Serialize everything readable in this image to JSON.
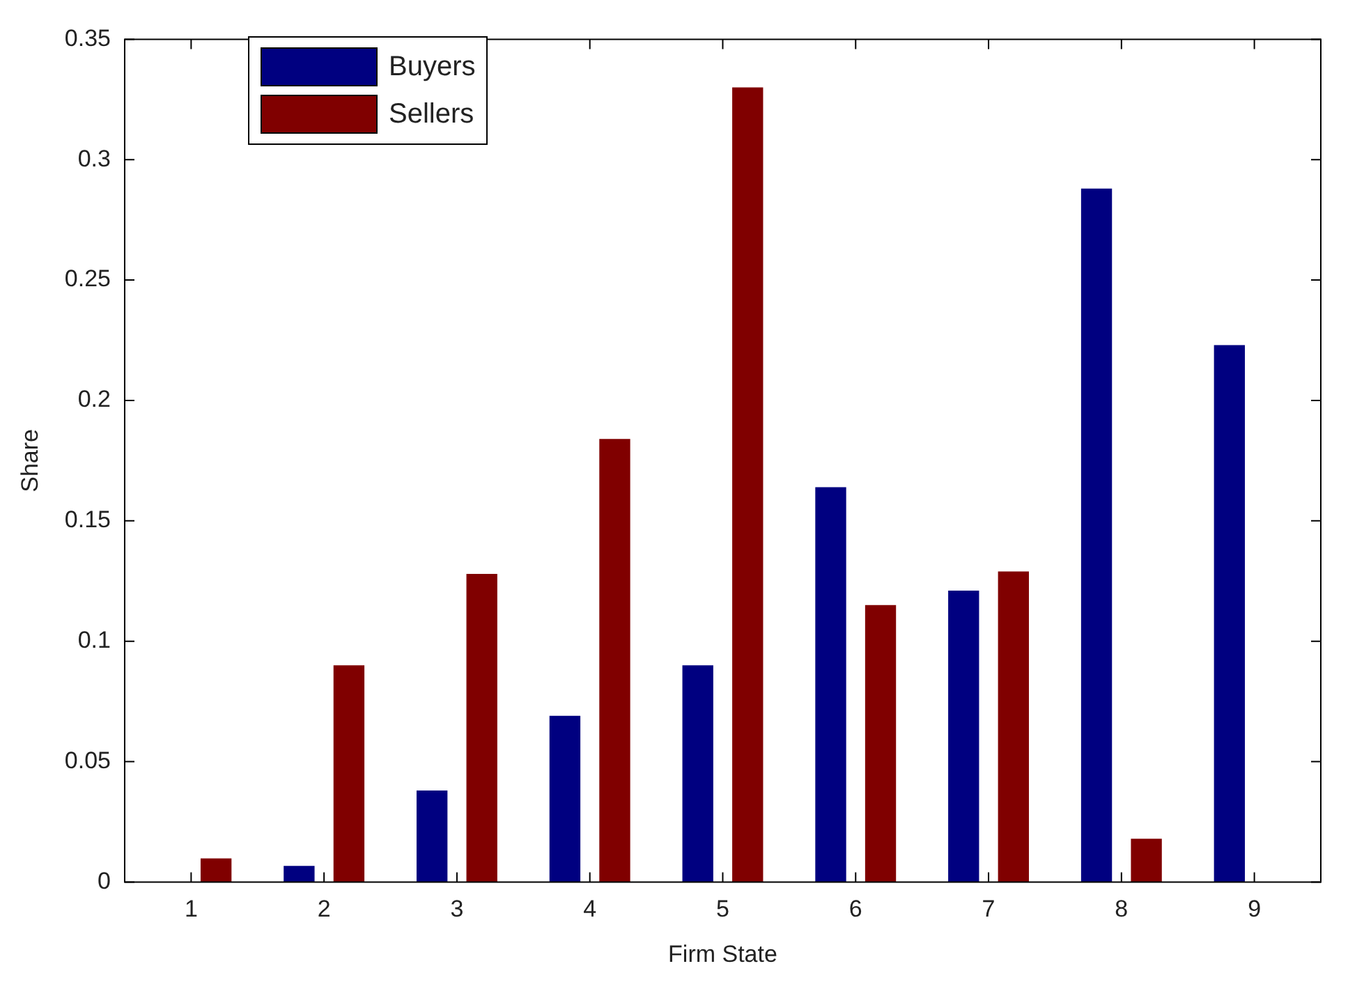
{
  "chart_data": {
    "type": "bar",
    "xlabel": "Firm State",
    "ylabel": "Share",
    "categories": [
      "1",
      "2",
      "3",
      "4",
      "5",
      "6",
      "7",
      "8",
      "9"
    ],
    "series": [
      {
        "name": "Buyers",
        "color": "#000080",
        "values": [
          0,
          0.0067,
          0.038,
          0.069,
          0.09,
          0.164,
          0.121,
          0.288,
          0.223
        ]
      },
      {
        "name": "Sellers",
        "color": "#800000",
        "values": [
          0.0098,
          0.09,
          0.128,
          0.184,
          0.33,
          0.115,
          0.129,
          0.018,
          0
        ]
      }
    ],
    "ylim": [
      0,
      0.35
    ],
    "yticks": [
      0,
      0.05,
      0.1,
      0.15,
      0.2,
      0.25,
      0.3,
      0.35
    ],
    "grid": false,
    "legend": "top left"
  }
}
